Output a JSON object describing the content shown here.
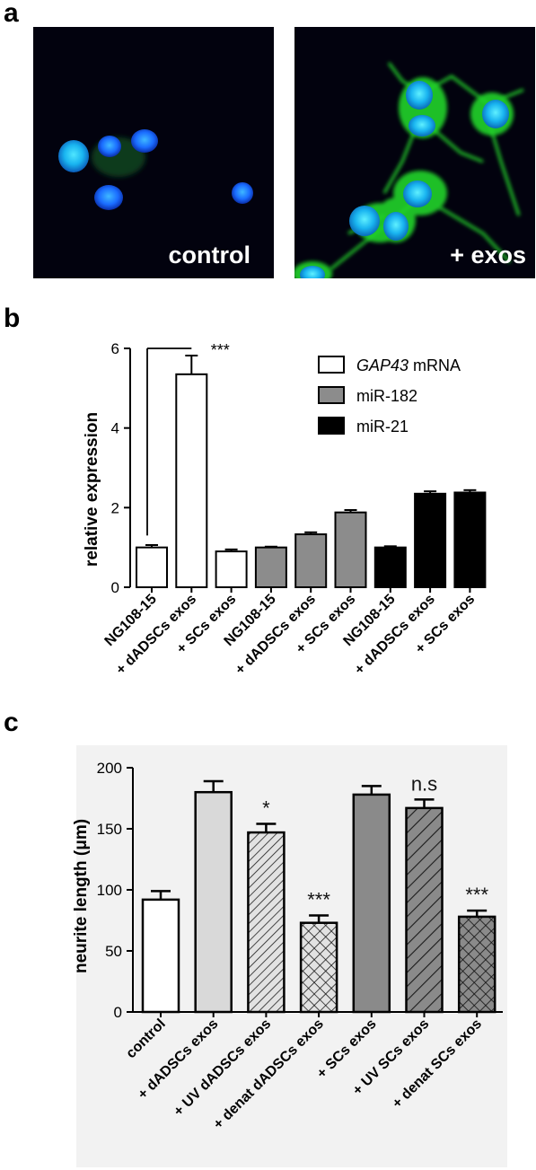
{
  "panel_a": {
    "letter": "a",
    "images": [
      {
        "label": "control"
      },
      {
        "label": "+ exos"
      }
    ]
  },
  "panel_b": {
    "letter": "b"
  },
  "panel_c": {
    "letter": "c"
  },
  "colors": {
    "white_bar": "#ffffff",
    "gray_bar": "#8c8c8c",
    "black_bar": "#000000",
    "light_bar": "#d9d9d9",
    "nucleus_blue": "#1a6cff",
    "neurite_green": "#22d42a"
  },
  "chart_data": [
    {
      "type": "bar",
      "ylabel": "relative expression",
      "ylim": [
        0,
        6
      ],
      "yticks": [
        "0",
        "2",
        "4",
        "6"
      ],
      "categories": [
        "NG108-15",
        "+ dADSCs exos",
        "+ SCs exos",
        "NG108-15",
        "+ dADSCs exos",
        "+ SCs exos",
        "NG108-15",
        "+ dADSCs exos",
        "+ SCs exos"
      ],
      "values": [
        1.0,
        5.35,
        0.9,
        1.0,
        1.33,
        1.88,
        1.0,
        2.35,
        2.38
      ],
      "errors": [
        0.06,
        0.47,
        0.05,
        0.02,
        0.05,
        0.06,
        0.03,
        0.06,
        0.06
      ],
      "groups": [
        0,
        0,
        0,
        1,
        1,
        1,
        2,
        2,
        2
      ],
      "legend": [
        {
          "italic": "GAP43",
          "text": " mRNA"
        },
        {
          "italic": "",
          "text": "miR-182"
        },
        {
          "italic": "",
          "text": "miR-21"
        }
      ],
      "annotations": [
        {
          "text": "***"
        }
      ]
    },
    {
      "type": "bar",
      "ylabel": "neurite length (μm)",
      "ylim": [
        0,
        200
      ],
      "yticks": [
        "0",
        "50",
        "100",
        "150",
        "200"
      ],
      "categories": [
        "control",
        "+ dADSCs exos",
        "+ UV dADSCs exos",
        "+ denat dADSCs exos",
        "+ SCs exos",
        "+ UV SCs exos",
        "+ denat SCs exos"
      ],
      "values": [
        92,
        180,
        147,
        73,
        178,
        167,
        78
      ],
      "errors": [
        7,
        9,
        7,
        6,
        7,
        7,
        5
      ],
      "fills": [
        "white",
        "light",
        "light-hatch",
        "light-crosshatch",
        "gray",
        "gray-hatch",
        "gray-crosshatch"
      ],
      "annotations": [
        "",
        "",
        "*",
        "***",
        "",
        "n.s",
        "***"
      ]
    }
  ]
}
